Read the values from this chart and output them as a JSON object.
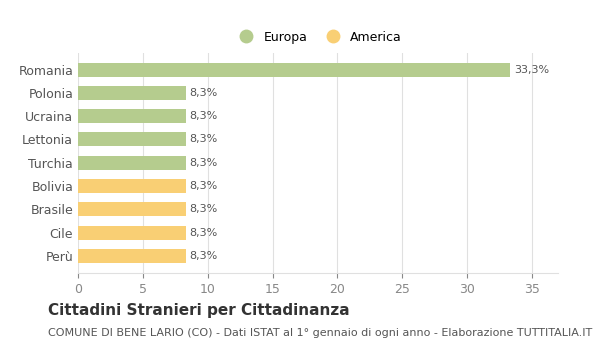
{
  "categories": [
    "Perù",
    "Cile",
    "Brasile",
    "Bolivia",
    "Turchia",
    "Lettonia",
    "Ucraina",
    "Polonia",
    "Romania"
  ],
  "values": [
    8.3,
    8.3,
    8.3,
    8.3,
    8.3,
    8.3,
    8.3,
    8.3,
    33.3
  ],
  "colors": [
    "#f9cf74",
    "#f9cf74",
    "#f9cf74",
    "#f9cf74",
    "#b5cc8e",
    "#b5cc8e",
    "#b5cc8e",
    "#b5cc8e",
    "#b5cc8e"
  ],
  "bar_labels": [
    "8,3%",
    "8,3%",
    "8,3%",
    "8,3%",
    "8,3%",
    "8,3%",
    "8,3%",
    "8,3%",
    "33,3%"
  ],
  "xlim": [
    0,
    37
  ],
  "xticks": [
    0,
    5,
    10,
    15,
    20,
    25,
    30,
    35
  ],
  "legend_europa_color": "#b5cc8e",
  "legend_america_color": "#f9cf74",
  "background_color": "#ffffff",
  "grid_color": "#e0e0e0",
  "bar_label_fontsize": 8,
  "tick_label_fontsize": 9,
  "title": "Cittadini Stranieri per Cittadinanza",
  "subtitle": "COMUNE DI BENE LARIO (CO) - Dati ISTAT al 1° gennaio di ogni anno - Elaborazione TUTTITALIA.IT",
  "title_fontsize": 11,
  "subtitle_fontsize": 8
}
